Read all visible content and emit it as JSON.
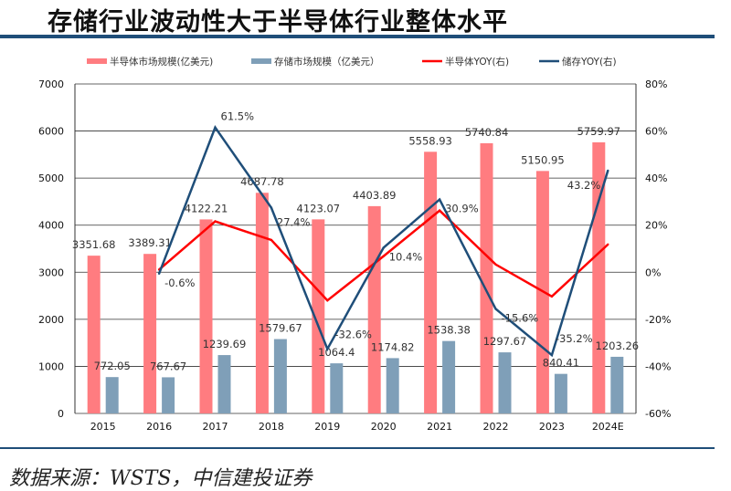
{
  "title": "存储行业波动性大于半导体行业整体水平",
  "source": "数据来源：WSTS，中信建投证券",
  "chart_data": {
    "type": "bar+line",
    "categories": [
      "2015",
      "2016",
      "2017",
      "2018",
      "2019",
      "2020",
      "2021",
      "2022",
      "2023",
      "2024E"
    ],
    "y_left": {
      "range": [
        0,
        7000
      ],
      "ticks": [
        0,
        1000,
        2000,
        3000,
        4000,
        5000,
        6000,
        7000
      ]
    },
    "y_right": {
      "range": [
        -60,
        80
      ],
      "unit": "%",
      "ticks": [
        -60,
        -40,
        -20,
        0,
        20,
        40,
        60,
        80
      ]
    },
    "grid": true,
    "legend_position": "top",
    "series": [
      {
        "name": "半导体市场规模(亿美元)",
        "type": "bar",
        "axis": "left",
        "color": "#ff7c80",
        "values": [
          3351.68,
          3389.31,
          4122.21,
          4687.78,
          4123.07,
          4403.89,
          5558.93,
          5740.84,
          5150.95,
          5759.97
        ],
        "labels": [
          "3351.68",
          "3389.31",
          "4122.21",
          "4687.78",
          "4123.07",
          "4403.89",
          "5558.93",
          "5740.84",
          "5150.95",
          "5759.97"
        ]
      },
      {
        "name": "存储市场规模（亿美元）",
        "type": "bar",
        "axis": "left",
        "color": "#7f9fb8",
        "values": [
          772.05,
          767.67,
          1239.69,
          1579.67,
          1064.4,
          1174.82,
          1538.38,
          1297.67,
          840.41,
          1203.26
        ],
        "labels": [
          "772.05",
          "767.67",
          "1239.69",
          "1579.67",
          "1064.4",
          "1174.82",
          "1538.38",
          "1297.67",
          "840.41",
          "1203.26"
        ]
      },
      {
        "name": "半导体YOY(右)",
        "type": "line",
        "axis": "right",
        "color": "#ff0000",
        "values": [
          null,
          1.1,
          21.6,
          13.7,
          -12.0,
          6.8,
          26.2,
          3.3,
          -10.3,
          11.8
        ]
      },
      {
        "name": "储存YOY(右)",
        "type": "line",
        "axis": "right",
        "color": "#1f4e79",
        "values": [
          null,
          -0.6,
          61.5,
          27.4,
          -32.6,
          10.4,
          30.9,
          -15.6,
          -35.2,
          43.2
        ],
        "labels": [
          "",
          "-0.6%",
          "61.5%",
          "27.4%",
          "-32.6%",
          "10.4%",
          "30.9%",
          "-15.6%",
          "-35.2%",
          "43.2%"
        ]
      }
    ]
  }
}
